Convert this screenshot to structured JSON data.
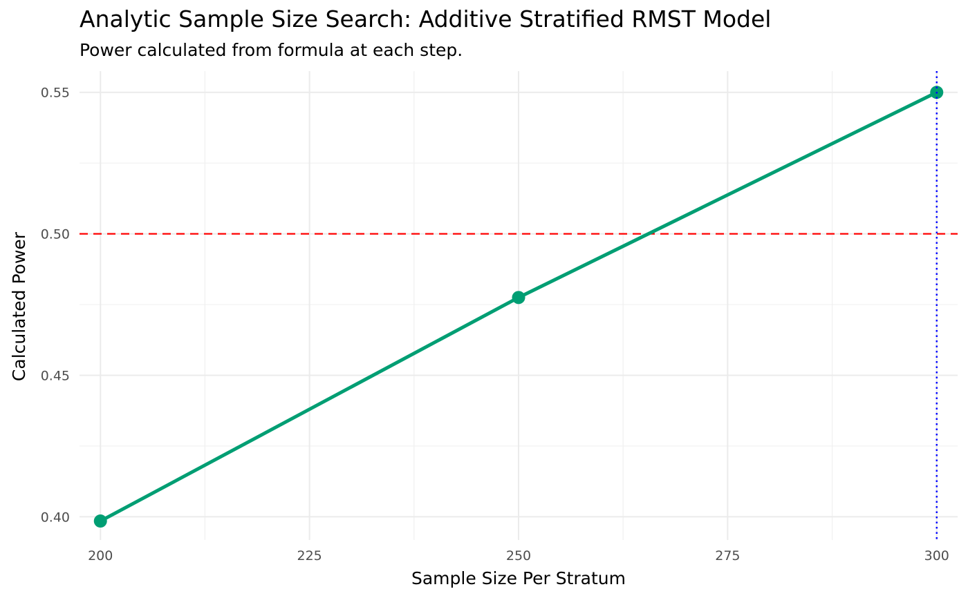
{
  "chart_data": {
    "type": "line",
    "title": "Analytic Sample Size Search: Additive Stratified RMST Model",
    "subtitle": "Power calculated from formula at each step.",
    "xlabel": "Sample Size Per Stratum",
    "ylabel": "Calculated Power",
    "x": [
      200,
      250,
      300
    ],
    "series": [
      {
        "values": [
          0.3985,
          0.4775,
          0.55
        ],
        "color": "#009E73"
      }
    ],
    "xlim": [
      197.5,
      302.5
    ],
    "ylim": [
      0.3918,
      0.5575
    ],
    "xticks": [
      200,
      225,
      250,
      275,
      300
    ],
    "xtick_labels": [
      "200",
      "225",
      "250",
      "275",
      "300"
    ],
    "yticks": [
      0.4,
      0.45,
      0.5,
      0.55
    ],
    "ytick_labels": [
      "0.40",
      "0.45",
      "0.50",
      "0.55"
    ],
    "x_minor": [
      212.5,
      237.5,
      262.5,
      287.5
    ],
    "y_minor": [
      0.425,
      0.475,
      0.525
    ],
    "hline": {
      "y": 0.5,
      "color": "#FF0000",
      "style": "dashed"
    },
    "vline": {
      "x": 300,
      "color": "#0000FF",
      "style": "dotted"
    },
    "grid": true,
    "legend": "none"
  }
}
